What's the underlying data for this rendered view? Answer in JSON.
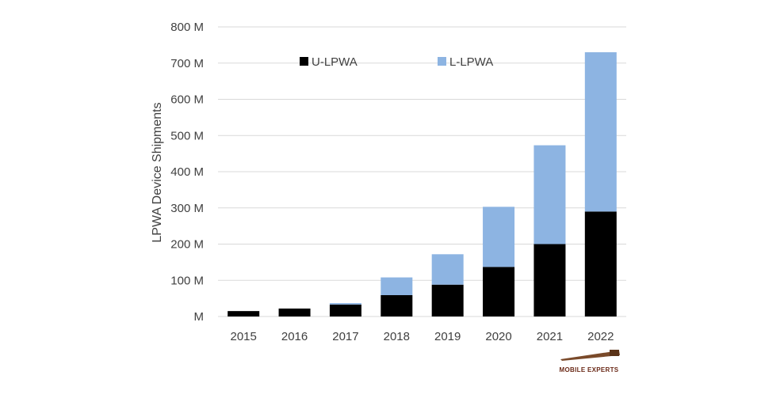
{
  "chart_data": {
    "type": "bar",
    "stacked": true,
    "title": "",
    "xlabel": "",
    "ylabel": "LPWA Device Shipments",
    "ylim": [
      0,
      800
    ],
    "yticks": [
      "M",
      "100 M",
      "200 M",
      "300 M",
      "400 M",
      "500 M",
      "600 M",
      "700 M",
      "800 M"
    ],
    "grid": true,
    "legend_position": "top",
    "categories": [
      "2015",
      "2016",
      "2017",
      "2018",
      "2019",
      "2020",
      "2021",
      "2022"
    ],
    "series": [
      {
        "name": "U-LPWA",
        "color": "#000000",
        "values": [
          15,
          22,
          33,
          59,
          88,
          137,
          200,
          290
        ]
      },
      {
        "name": "L-LPWA",
        "color": "#8db4e2",
        "values": [
          0,
          0,
          4,
          49,
          84,
          166,
          273,
          440
        ]
      }
    ]
  },
  "logo": {
    "text": "MOBILE EXPERTS"
  }
}
